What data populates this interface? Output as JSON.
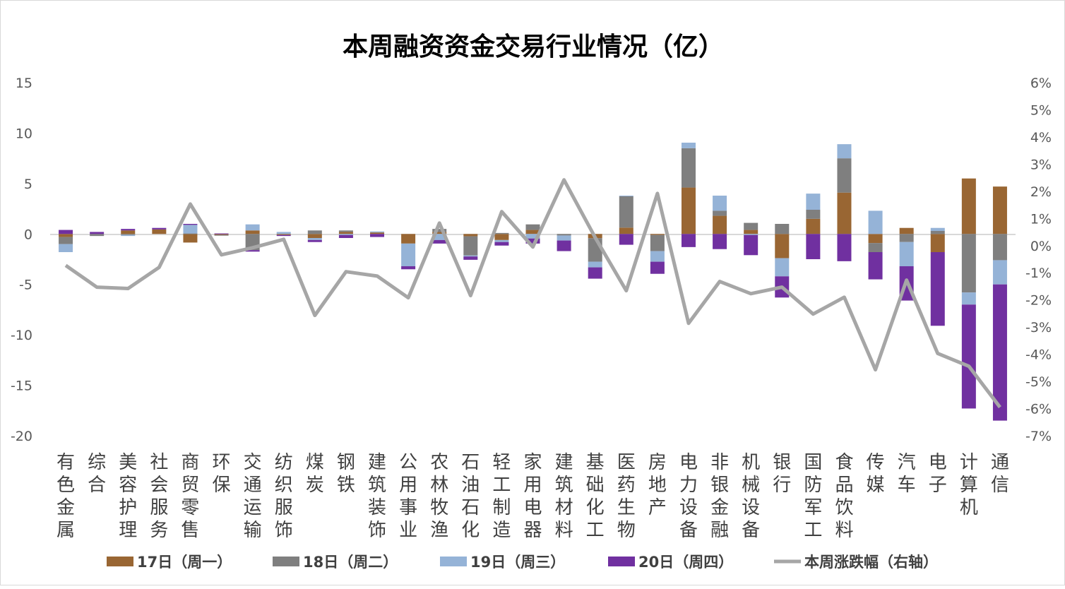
{
  "chart_data": {
    "type": "bar",
    "stacked": true,
    "title": "本周融资资金交易行业情况（亿）",
    "categories": [
      "有色金属",
      "综合",
      "美容护理",
      "社会服务",
      "商贸零售",
      "环保",
      "交通运输",
      "纺织服饰",
      "煤炭",
      "钢铁",
      "建筑装饰",
      "公用事业",
      "农林牧渔",
      "石油石化",
      "轻工制造",
      "家用电器",
      "建筑材料",
      "基础化工",
      "医药生物",
      "房地产",
      "电力设备",
      "非银金融",
      "机械设备",
      "银行",
      "国防军工",
      "食品饮料",
      "传媒",
      "汽车",
      "电子",
      "计算机",
      "通信"
    ],
    "y_left": {
      "range": [
        -20,
        15
      ],
      "ticks": [
        "15",
        "10",
        "5",
        "0",
        "-5",
        "-10",
        "-15",
        "-20"
      ]
    },
    "y_right": {
      "range": [
        -7,
        6
      ],
      "ticks": [
        "6%",
        "5%",
        "4%",
        "3%",
        "2%",
        "1%",
        "0%",
        "-1%",
        "-2%",
        "-3%",
        "-4%",
        "-5%",
        "-6%",
        "-7%"
      ]
    },
    "grid": false,
    "legend_position": "bottom",
    "series": [
      {
        "name": "17日（周一）",
        "type": "bar",
        "color": "#996633",
        "values": [
          -0.3,
          0,
          0.35,
          0.45,
          -0.85,
          -0.1,
          0.35,
          -0.1,
          -0.4,
          0.2,
          0.15,
          -0.95,
          0.2,
          -0.23,
          -0.6,
          0.4,
          0,
          -0.42,
          0.63,
          -0.1,
          4.6,
          1.8,
          0.4,
          -2.4,
          1.5,
          4.1,
          -0.9,
          0.6,
          -1.8,
          5.5,
          4.7
        ]
      },
      {
        "name": "18日（周二）",
        "type": "bar",
        "color": "#7f7f7f",
        "values": [
          -0.7,
          -0.2,
          -0.1,
          0,
          0.05,
          -0.05,
          -1.6,
          0,
          0.35,
          0.15,
          0,
          0,
          0.3,
          -1.9,
          0.1,
          0.55,
          -0.15,
          -2.33,
          3.1,
          -1.6,
          3.9,
          0.5,
          0.7,
          1.0,
          0.9,
          3.4,
          -0.9,
          -0.8,
          0.3,
          -5.8,
          -2.6
        ]
      },
      {
        "name": "19日（周三）",
        "type": "bar",
        "color": "#95b3d7",
        "values": [
          -0.8,
          0,
          -0.1,
          0,
          0.85,
          0,
          0.6,
          0.2,
          -0.2,
          -0.1,
          0.1,
          -2.25,
          -0.6,
          -0.1,
          -0.2,
          -0.45,
          -0.5,
          -0.56,
          0.07,
          -1.05,
          0.55,
          1.5,
          -0.1,
          -1.8,
          1.6,
          1.4,
          2.3,
          -2.4,
          0.3,
          -1.2,
          -2.4
        ]
      },
      {
        "name": "20日（周四）",
        "type": "bar",
        "color": "#7030a0",
        "values": [
          0.4,
          0.2,
          0.15,
          0.15,
          0.1,
          0.05,
          -0.15,
          -0.1,
          -0.2,
          -0.3,
          -0.3,
          -0.3,
          -0.35,
          -0.33,
          -0.35,
          -0.5,
          -1.05,
          -1.12,
          -1.07,
          -1.2,
          -1.3,
          -1.5,
          -2.0,
          -2.1,
          -2.5,
          -2.7,
          -2.7,
          -3.4,
          -7.3,
          -10.3,
          -13.5
        ]
      },
      {
        "name": "本周涨跌幅（右轴）",
        "type": "line",
        "axis": "right",
        "unit": "%",
        "color": "#a6a6a6",
        "values": [
          -0.73,
          -1.53,
          -1.58,
          -0.8,
          1.53,
          -0.34,
          -0.08,
          0.23,
          -2.57,
          -0.96,
          -1.12,
          -1.92,
          0.83,
          -1.84,
          1.25,
          -0.05,
          2.42,
          0.3,
          -1.66,
          1.92,
          -2.86,
          -1.32,
          -1.77,
          -1.53,
          -2.52,
          -1.9,
          -4.57,
          -1.27,
          -3.97,
          -4.44,
          -5.95
        ]
      }
    ]
  }
}
